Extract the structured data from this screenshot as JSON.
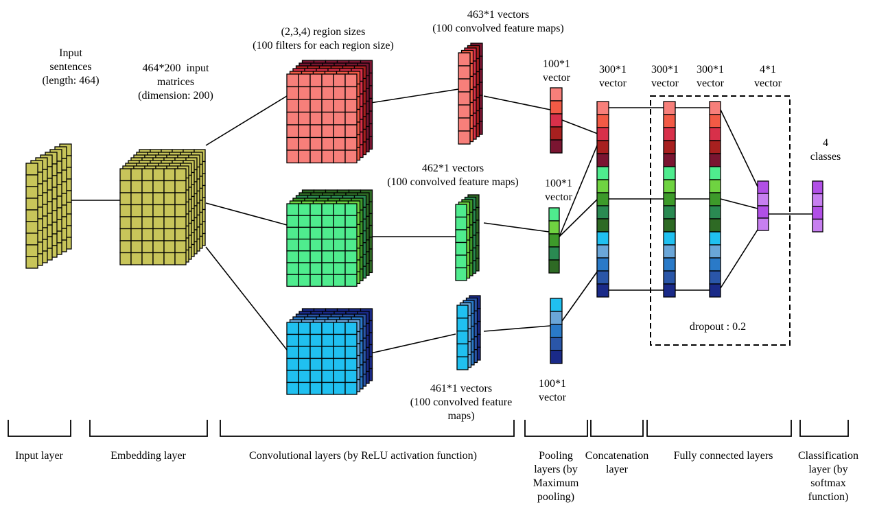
{
  "annotations": {
    "input_sentences": "Input\nsentences\n(length: 464)",
    "input_matrices": "464*200  input\nmatrices\n(dimension: 200)",
    "region_sizes": "(2,3,4) region sizes\n(100 filters for each region size)",
    "maps_463": "463*1 vectors\n(100 convolved feature maps)",
    "maps_462": "462*1 vectors\n(100 convolved feature maps)",
    "maps_461": "461*1 vectors\n(100 convolved feature\nmaps)",
    "pool_vec_top": "100*1\nvector",
    "pool_vec_mid": "100*1\nvector",
    "pool_vec_bot": "100*1\nvector",
    "concat_vec": "300*1\nvector",
    "fc1_vec": "300*1\nvector",
    "fc2_vec": "300*1\nvector",
    "out_vec": "4*1\nvector",
    "classes": "4\nclasses",
    "dropout": "dropout : 0.2"
  },
  "layers": [
    {
      "key": "input",
      "label": "Input layer"
    },
    {
      "key": "embedding",
      "label": "Embedding layer"
    },
    {
      "key": "convolutional",
      "label": "Convolutional layers (by ReLU activation function)"
    },
    {
      "key": "pooling",
      "label": "Pooling\nlayers (by\nMaximum\npooling)"
    },
    {
      "key": "concatenation",
      "label": "Concatenation\nlayer"
    },
    {
      "key": "fully_connected",
      "label": "Fully connected layers"
    },
    {
      "key": "classification",
      "label": "Classification\nlayer (by\nsoftmax\nfunction)"
    }
  ],
  "colors": {
    "olive": "#c8c55a",
    "red_front": "#f77f7a",
    "red_back": [
      "#f25a45",
      "#d8304a",
      "#a8201f",
      "#7a1531"
    ],
    "green_front": "#4fec8e",
    "green_back": [
      "#6fd341",
      "#3d9a2a",
      "#2a8a52",
      "#2e6a24"
    ],
    "blue_front": "#20c0f0",
    "blue_back": [
      "#6aa6d8",
      "#2a7ac8",
      "#2a56a8",
      "#1a2a88"
    ],
    "purple": "#b14fe6",
    "purple_light": "#c77ff0",
    "concat_cells": [
      "#f77f7a",
      "#f25a45",
      "#d8304a",
      "#a8201f",
      "#7a1531",
      "#4fec8e",
      "#6fd341",
      "#3d9a2a",
      "#2a8a52",
      "#2e6a24",
      "#20c0f0",
      "#6aa6d8",
      "#2a7ac8",
      "#2a56a8",
      "#1a2a88"
    ],
    "pool_top": [
      "#f77f7a",
      "#f25a45",
      "#d8304a",
      "#a8201f",
      "#7a1531"
    ],
    "pool_mid": [
      "#4fec8e",
      "#6fd341",
      "#3d9a2a",
      "#2a8a52",
      "#2e6a24"
    ],
    "pool_bot": [
      "#20c0f0",
      "#6aa6d8",
      "#2a7ac8",
      "#2a56a8",
      "#1a2a88"
    ],
    "out_cells": [
      "#b14fe6",
      "#c77ff0",
      "#b14fe6",
      "#c77ff0"
    ]
  }
}
